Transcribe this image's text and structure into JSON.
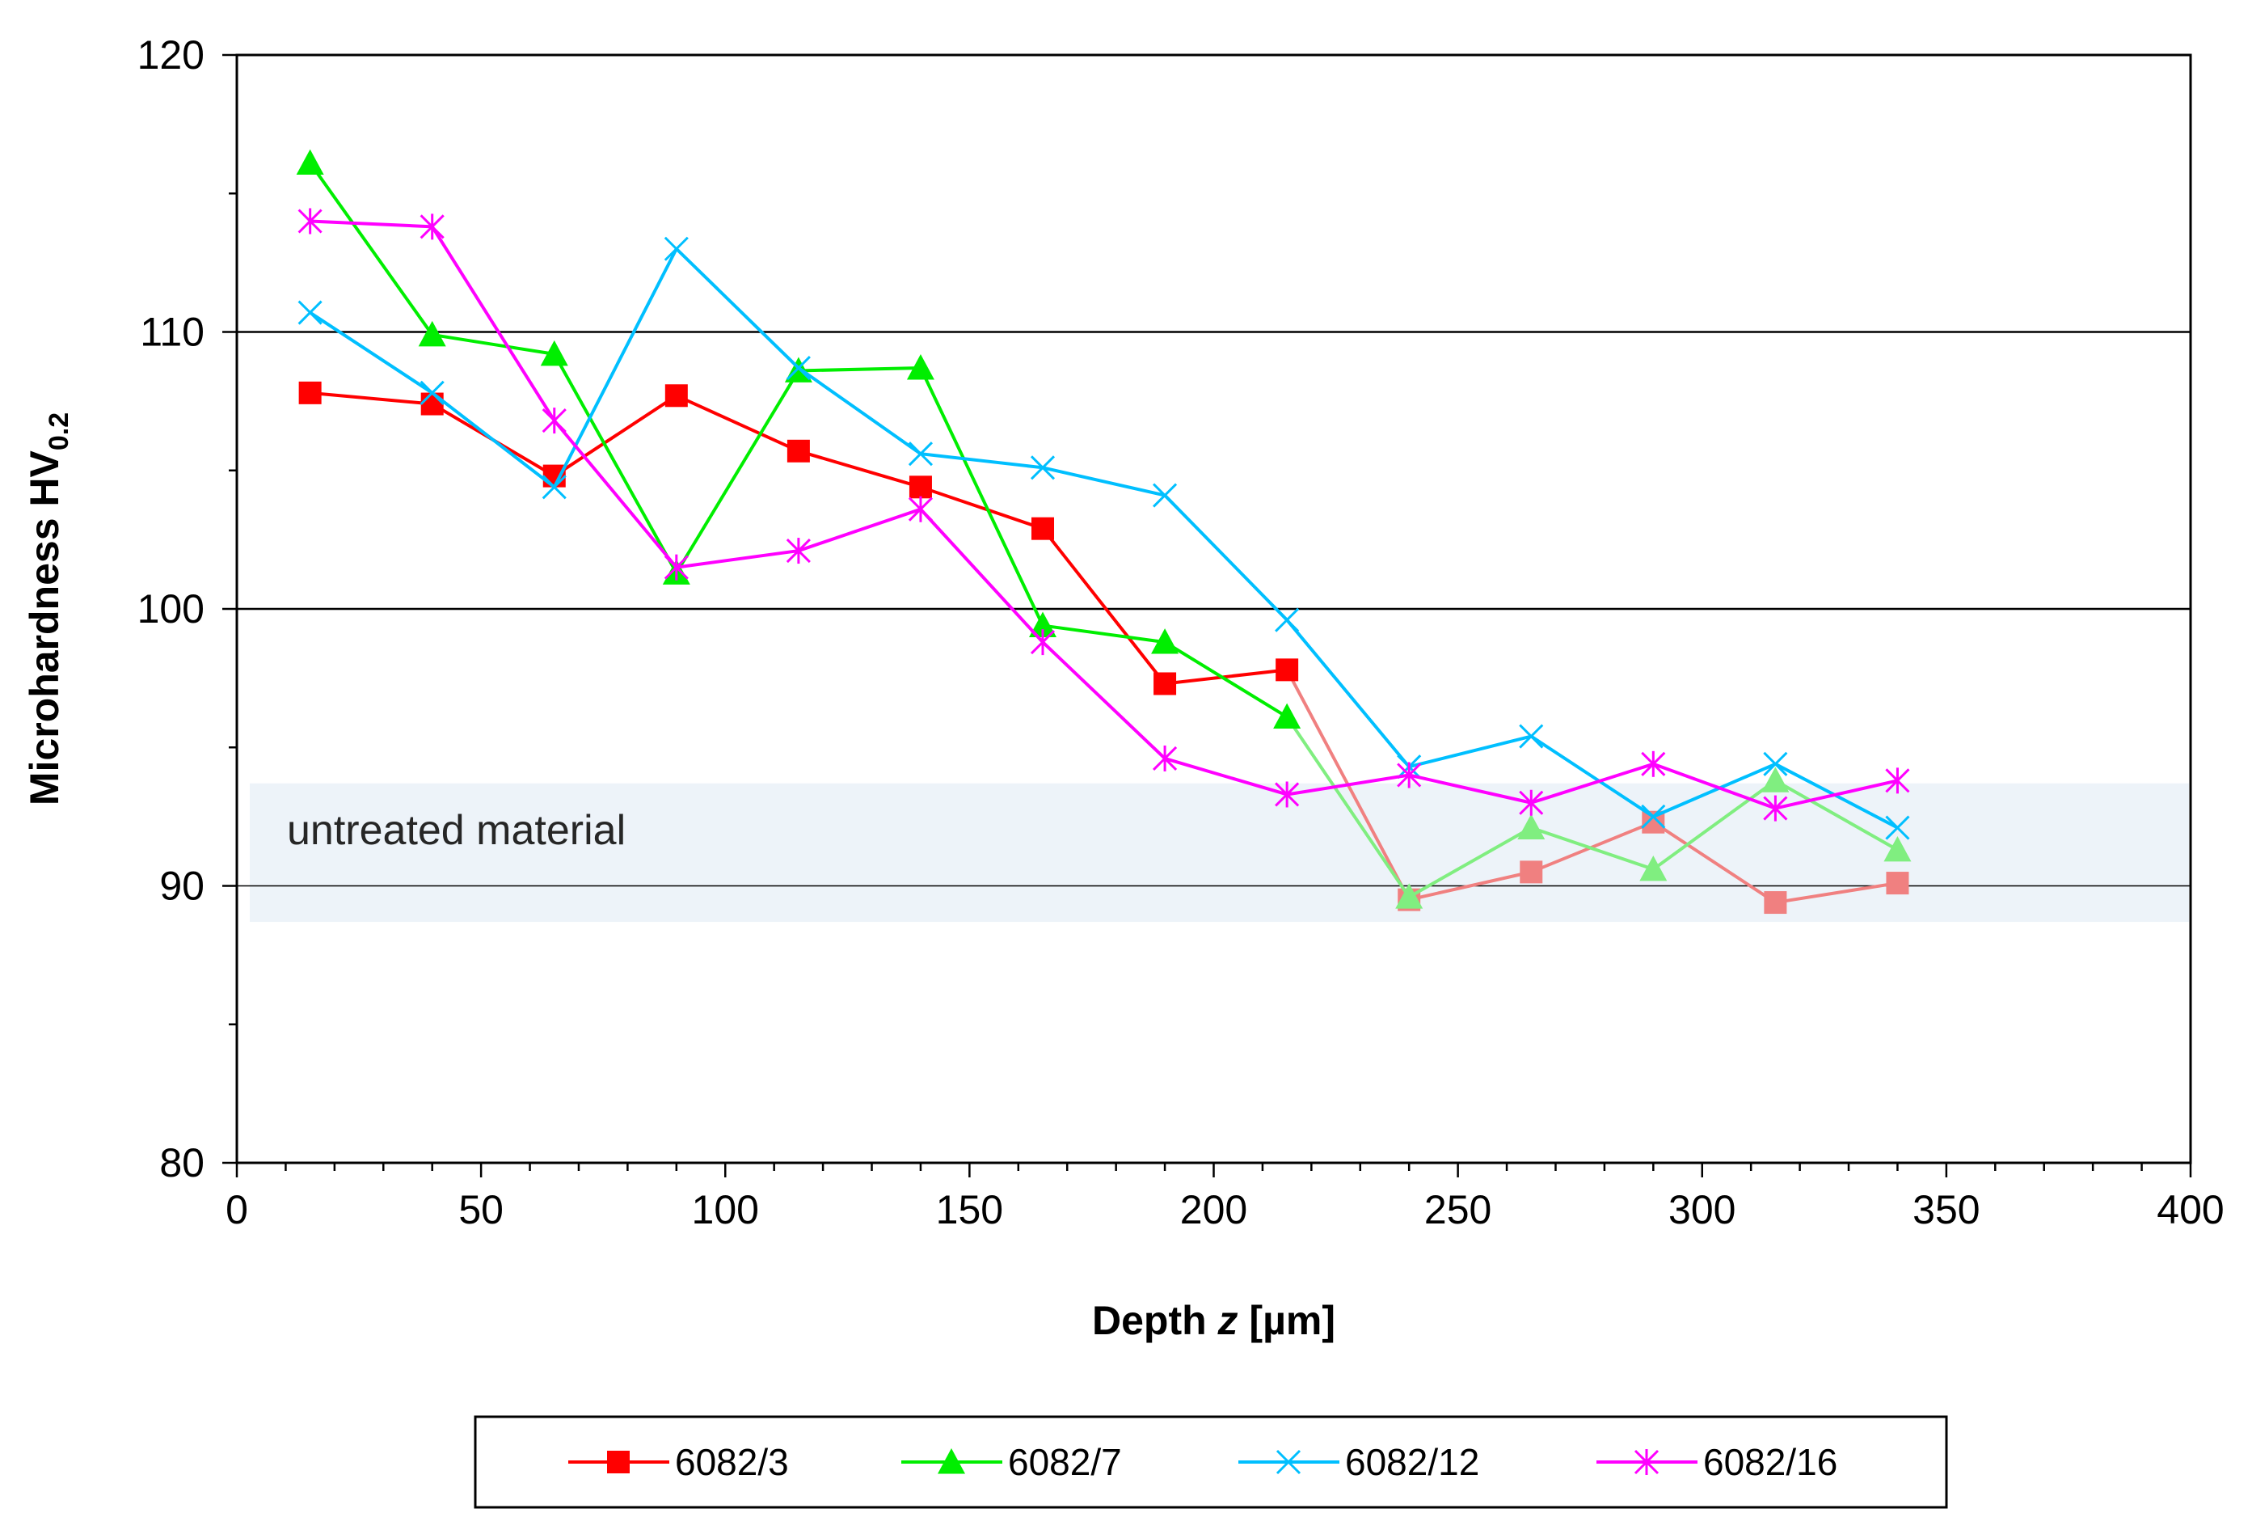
{
  "chart_data": {
    "type": "line",
    "title": "",
    "xlabel": "Depth z [µm]",
    "xlabel_parts": {
      "prefix": "Depth ",
      "italic": "z",
      "suffix": " [µm]"
    },
    "ylabel": "Microhardness HV0.2",
    "ylabel_parts": {
      "main": "Microhardness HV",
      "sub": "0.2"
    },
    "xlim": [
      0,
      400
    ],
    "ylim": [
      80,
      120
    ],
    "x_ticks": [
      "0",
      "50",
      "100",
      "150",
      "200",
      "250",
      "300",
      "350",
      "400"
    ],
    "y_ticks": [
      "80",
      "90",
      "100",
      "110",
      "120"
    ],
    "gridlines_y": [
      90,
      100,
      110
    ],
    "annotation": {
      "text": "untreated material",
      "band": [
        88.7,
        93.7
      ]
    },
    "legend_position": "bottom",
    "x": [
      15,
      40,
      65,
      90,
      115,
      140,
      165,
      190,
      215,
      240,
      265,
      290,
      315,
      340
    ],
    "series": [
      {
        "name": "6082/3",
        "color": "#ff0000",
        "faded_color": "#f08080",
        "marker": "square",
        "values": [
          107.8,
          107.4,
          104.8,
          107.7,
          105.7,
          104.4,
          102.9,
          97.3,
          97.8,
          89.5,
          90.5,
          92.3,
          89.4,
          90.1
        ]
      },
      {
        "name": "6082/7",
        "color": "#00ee00",
        "faded_color": "#80ee80",
        "marker": "triangle",
        "values": [
          116.1,
          109.9,
          109.2,
          101.3,
          108.6,
          108.7,
          99.4,
          98.8,
          96.1,
          89.6,
          92.1,
          90.6,
          93.8,
          91.3
        ]
      },
      {
        "name": "6082/12",
        "color": "#00bfff",
        "faded_color": "#00bfff",
        "marker": "x",
        "values": [
          110.7,
          107.8,
          104.4,
          113.0,
          108.7,
          105.6,
          105.1,
          104.1,
          99.6,
          94.3,
          95.4,
          92.5,
          94.4,
          92.1
        ]
      },
      {
        "name": "6082/16",
        "color": "#ff00ff",
        "faded_color": "#ff00ff",
        "marker": "star",
        "values": [
          114.0,
          113.8,
          106.8,
          101.5,
          102.1,
          103.6,
          98.8,
          94.6,
          93.3,
          94.0,
          93.0,
          94.4,
          92.8,
          93.8
        ]
      }
    ]
  }
}
